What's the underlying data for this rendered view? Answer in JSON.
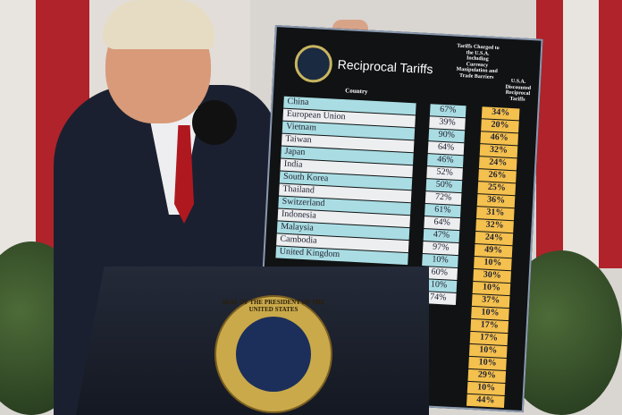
{
  "board": {
    "title": "Reciprocal Tariffs",
    "col_country": "Country",
    "col_charged": "Tariffs Charged to the U.S.A. Including Currency Manipulation and Trade Barriers",
    "col_reciprocal": "U.S.A. Discounted Reciprocal Tariffs",
    "rows": [
      {
        "country": "China",
        "charged": "67%",
        "reciprocal": "34%"
      },
      {
        "country": "European Union",
        "charged": "39%",
        "reciprocal": "20%"
      },
      {
        "country": "Vietnam",
        "charged": "90%",
        "reciprocal": "46%"
      },
      {
        "country": "Taiwan",
        "charged": "64%",
        "reciprocal": "32%"
      },
      {
        "country": "Japan",
        "charged": "46%",
        "reciprocal": "24%"
      },
      {
        "country": "India",
        "charged": "52%",
        "reciprocal": "26%"
      },
      {
        "country": "South Korea",
        "charged": "50%",
        "reciprocal": "25%"
      },
      {
        "country": "Thailand",
        "charged": "72%",
        "reciprocal": "36%"
      },
      {
        "country": "Switzerland",
        "charged": "61%",
        "reciprocal": "31%"
      },
      {
        "country": "Indonesia",
        "charged": "64%",
        "reciprocal": "32%"
      },
      {
        "country": "Malaysia",
        "charged": "47%",
        "reciprocal": "24%"
      },
      {
        "country": "Cambodia",
        "charged": "97%",
        "reciprocal": "49%"
      },
      {
        "country": "United Kingdom",
        "charged": "10%",
        "reciprocal": "10%"
      },
      {
        "country": "",
        "charged": "60%",
        "reciprocal": "30%"
      },
      {
        "country": "",
        "charged": "10%",
        "reciprocal": "10%"
      },
      {
        "country": "",
        "charged": "74%",
        "reciprocal": "37%"
      },
      {
        "country": "",
        "charged": "",
        "reciprocal": "10%"
      },
      {
        "country": "",
        "charged": "",
        "reciprocal": "17%"
      },
      {
        "country": "",
        "charged": "",
        "reciprocal": "17%"
      },
      {
        "country": "",
        "charged": "",
        "reciprocal": "10%"
      },
      {
        "country": "",
        "charged": "",
        "reciprocal": "10%"
      },
      {
        "country": "",
        "charged": "",
        "reciprocal": "29%"
      },
      {
        "country": "",
        "charged": "",
        "reciprocal": "10%"
      },
      {
        "country": "",
        "charged": "",
        "reciprocal": "44%"
      }
    ]
  },
  "podium_seal": "SEAL OF THE PRESIDENT OF THE UNITED STATES",
  "colors": {
    "cyan_row": "#a9dde3",
    "white_row": "#eceef0",
    "yellow": "#f4c04e",
    "flag_red": "#b0232b"
  }
}
